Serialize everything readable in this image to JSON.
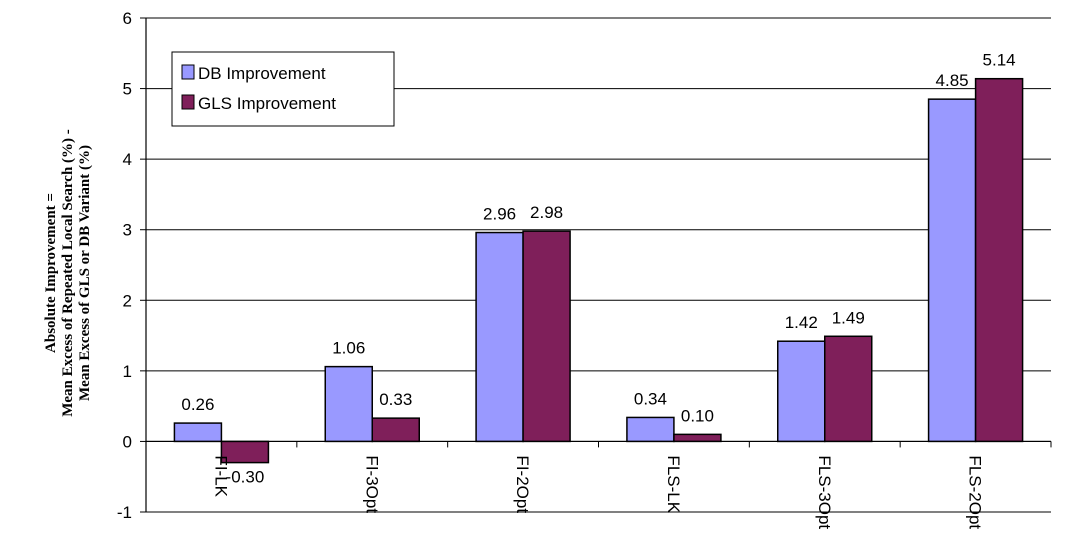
{
  "chart_data": {
    "type": "bar",
    "categories": [
      "FI-LK",
      "FI-3Opt",
      "FI-2Opt",
      "FLS-LK",
      "FLS-3Opt",
      "FLS-2Opt"
    ],
    "series": [
      {
        "name": "DB Improvement",
        "values": [
          0.26,
          1.06,
          2.96,
          0.34,
          1.42,
          4.85
        ],
        "labels": [
          "0.26",
          "1.06",
          "2.96",
          "0.34",
          "1.42",
          "4.85"
        ],
        "color": "#9999ff"
      },
      {
        "name": "GLS Improvement",
        "values": [
          -0.3,
          0.33,
          2.98,
          0.1,
          1.49,
          5.14
        ],
        "labels": [
          "-0.30",
          "0.33",
          "2.98",
          "0.10",
          "1.49",
          "5.14"
        ],
        "color": "#7f1f5a"
      }
    ],
    "ylim": [
      -1,
      6
    ],
    "yticks": [
      "-1",
      "0",
      "1",
      "2",
      "3",
      "4",
      "5",
      "6"
    ],
    "ylabel_lines": [
      "Absolute Improvement =",
      "Mean Excess of Repeated Local Search (%) -",
      "Mean Excess of GLS or DB Variant (%)"
    ],
    "legend_position": "top-left",
    "grid": "horizontal"
  }
}
